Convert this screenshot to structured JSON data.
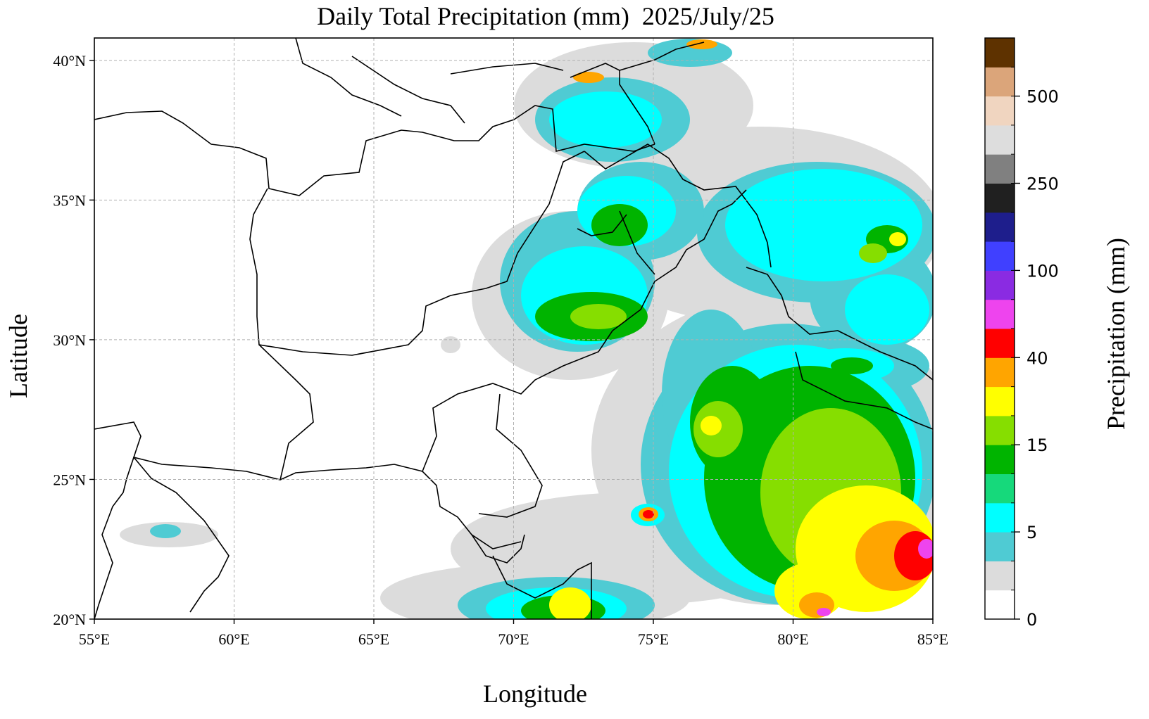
{
  "title": "Daily Total Precipitation (mm)  2025/July/25",
  "xlabel": "Longitude",
  "ylabel": "Latitude",
  "map": {
    "lon_range": [
      55,
      85
    ],
    "lat_range": [
      20,
      40.8
    ],
    "lon_ticks": [
      {
        "value": 55,
        "label": "55°E"
      },
      {
        "value": 60,
        "label": "60°E"
      },
      {
        "value": 65,
        "label": "65°E"
      },
      {
        "value": 70,
        "label": "70°E"
      },
      {
        "value": 75,
        "label": "75°E"
      },
      {
        "value": 80,
        "label": "80°E"
      },
      {
        "value": 85,
        "label": "85°E"
      }
    ],
    "lat_ticks": [
      {
        "value": 20,
        "label": "20°N"
      },
      {
        "value": 25,
        "label": "25°N"
      },
      {
        "value": 30,
        "label": "30°N"
      },
      {
        "value": 35,
        "label": "35°N"
      },
      {
        "value": 40,
        "label": "40°N"
      }
    ],
    "grid": true
  },
  "colorbar": {
    "title": "Precipitation (mm)",
    "levels": [
      {
        "color": "#ffffff"
      },
      {
        "color": "#dcdcdc"
      },
      {
        "color": "#4fcbd3"
      },
      {
        "color": "#00ffff"
      },
      {
        "color": "#16d97b"
      },
      {
        "color": "#00b400"
      },
      {
        "color": "#86de00"
      },
      {
        "color": "#ffff00"
      },
      {
        "color": "#ffa500"
      },
      {
        "color": "#ff0000"
      },
      {
        "color": "#ee44ee"
      },
      {
        "color": "#8a2be2"
      },
      {
        "color": "#4040ff"
      },
      {
        "color": "#1e1e8c"
      },
      {
        "color": "#202020"
      },
      {
        "color": "#808080"
      },
      {
        "color": "#dddddd"
      },
      {
        "color": "#f0d5c0"
      },
      {
        "color": "#dba57a"
      },
      {
        "color": "#5e3200"
      }
    ],
    "labels": [
      "0",
      "5",
      "15",
      "40",
      "100",
      "250",
      "500"
    ],
    "label_positions": [
      0,
      3,
      6,
      9,
      12,
      15,
      18
    ]
  }
}
